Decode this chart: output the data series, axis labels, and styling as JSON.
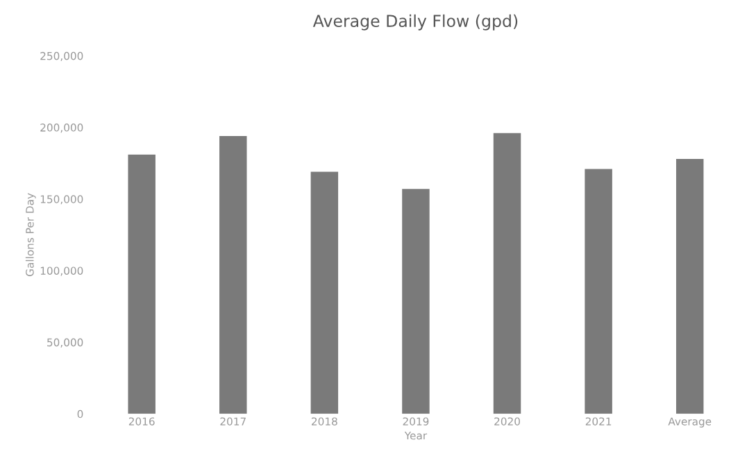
{
  "chart_data": {
    "type": "bar",
    "title": "Average Daily Flow (gpd)",
    "xlabel": "Year",
    "ylabel": "Gallons Per Day",
    "categories": [
      "2016",
      "2017",
      "2018",
      "2019",
      "2020",
      "2021",
      "Average"
    ],
    "values": [
      181000,
      194000,
      169000,
      157000,
      196000,
      171000,
      178000
    ],
    "color": "#7a7a7a",
    "ylim": [
      0,
      250000
    ],
    "yticks": [
      {
        "value": 0,
        "label": "0"
      },
      {
        "value": 50000,
        "label": "50,000"
      },
      {
        "value": 100000,
        "label": "100,000"
      },
      {
        "value": 150000,
        "label": "150,000"
      },
      {
        "value": 200000,
        "label": "200,000"
      },
      {
        "value": 250000,
        "label": "250,000"
      }
    ],
    "grid": false,
    "legend": false
  }
}
